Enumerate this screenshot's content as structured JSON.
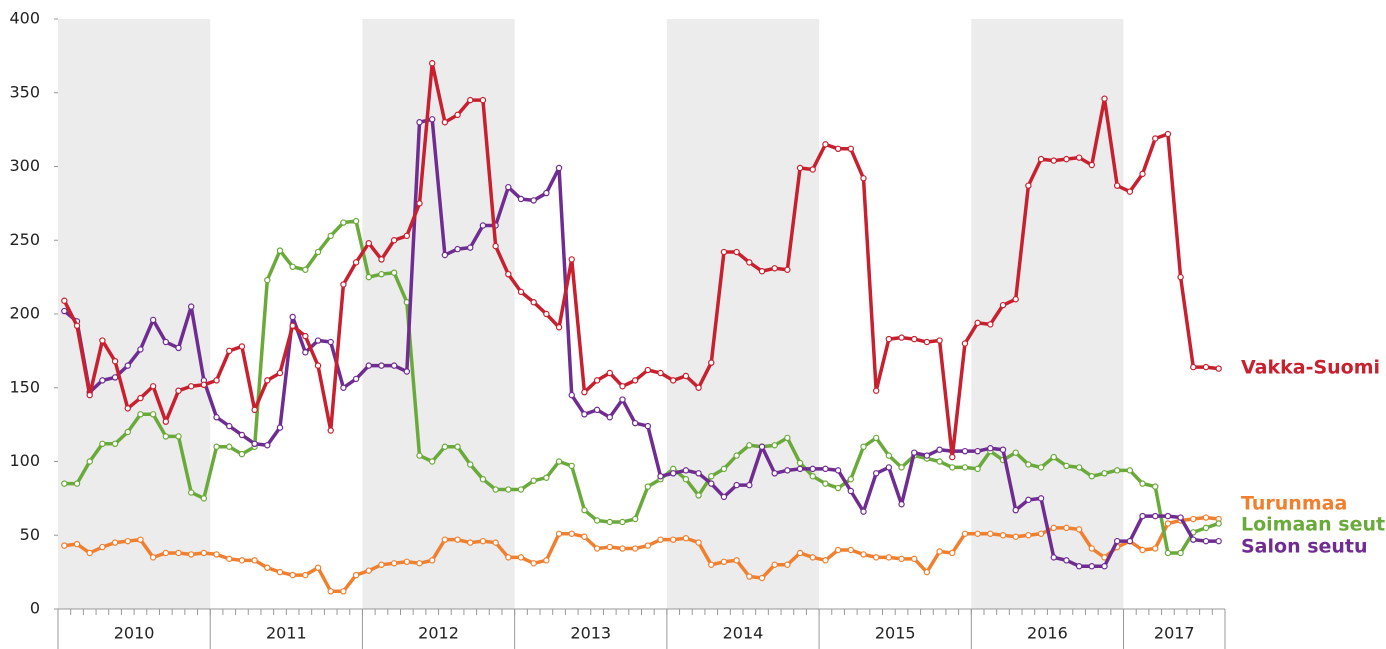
{
  "chart_data": {
    "type": "line",
    "periods": [
      {
        "label": "2010",
        "length": 12
      },
      {
        "label": "2011",
        "length": 12
      },
      {
        "label": "2012",
        "length": 12
      },
      {
        "label": "2013",
        "length": 12
      },
      {
        "label": "2014",
        "length": 12
      },
      {
        "label": "2015",
        "length": 12
      },
      {
        "label": "2016",
        "length": 12
      },
      {
        "label": "2017",
        "length": 8
      }
    ],
    "ylim": [
      0,
      400
    ],
    "yticks": [
      0,
      50,
      100,
      150,
      200,
      250,
      300,
      350,
      400
    ],
    "band_color": "#ececec",
    "series": [
      {
        "name": "Turunmaa",
        "color": "#f08030",
        "values": [
          43,
          44,
          38,
          42,
          45,
          46,
          47,
          35,
          38,
          38,
          37,
          38,
          37,
          34,
          33,
          33,
          28,
          25,
          23,
          23,
          28,
          12,
          12,
          23,
          26,
          30,
          31,
          32,
          31,
          33,
          47,
          47,
          45,
          46,
          45,
          35,
          35,
          31,
          33,
          51,
          51,
          49,
          41,
          42,
          41,
          41,
          43,
          47,
          47,
          48,
          45,
          30,
          32,
          33,
          22,
          21,
          30,
          30,
          38,
          35,
          33,
          40,
          40,
          37,
          35,
          35,
          34,
          34,
          25,
          39,
          38,
          51,
          51,
          51,
          50,
          49,
          50,
          51,
          55,
          55,
          54,
          41,
          35,
          42,
          46,
          40,
          41,
          58,
          60,
          61,
          62,
          61
        ]
      },
      {
        "name": "Loimaan seutu",
        "color": "#6aaa3a",
        "values": [
          85,
          85,
          100,
          112,
          112,
          120,
          132,
          132,
          117,
          117,
          79,
          75,
          110,
          110,
          105,
          110,
          223,
          243,
          232,
          230,
          242,
          253,
          262,
          263,
          225,
          227,
          228,
          208,
          104,
          100,
          110,
          110,
          98,
          88,
          81,
          81,
          81,
          87,
          89,
          100,
          97,
          67,
          60,
          59,
          59,
          61,
          83,
          88,
          95,
          88,
          77,
          90,
          95,
          104,
          111,
          110,
          111,
          116,
          99,
          90,
          85,
          82,
          88,
          110,
          116,
          104,
          96,
          104,
          102,
          100,
          96,
          96,
          95,
          107,
          101,
          106,
          98,
          96,
          103,
          97,
          96,
          90,
          92,
          94,
          94,
          85,
          83,
          38,
          38,
          52,
          55,
          58
        ]
      },
      {
        "name": "Salon seutu",
        "color": "#6f2c91",
        "values": [
          202,
          195,
          147,
          155,
          157,
          165,
          176,
          196,
          181,
          177,
          205,
          155,
          130,
          124,
          118,
          112,
          111,
          123,
          198,
          174,
          182,
          181,
          150,
          156,
          165,
          165,
          165,
          161,
          330,
          332,
          240,
          244,
          245,
          260,
          260,
          286,
          278,
          277,
          282,
          299,
          145,
          132,
          135,
          130,
          142,
          126,
          124,
          90,
          92,
          94,
          92,
          85,
          76,
          84,
          84,
          110,
          92,
          94,
          95,
          95,
          95,
          94,
          80,
          66,
          92,
          96,
          71,
          106,
          104,
          108,
          107,
          107,
          107,
          109,
          108,
          67,
          74,
          75,
          35,
          33,
          29,
          29,
          29,
          46,
          46,
          63,
          63,
          63,
          62,
          47,
          46,
          46
        ]
      },
      {
        "name": "Vakka-Suomi",
        "color": "#c8202f",
        "values": [
          209,
          192,
          145,
          182,
          168,
          136,
          143,
          151,
          127,
          148,
          151,
          152,
          155,
          175,
          178,
          135,
          155,
          160,
          192,
          185,
          165,
          121,
          220,
          235,
          248,
          237,
          250,
          253,
          275,
          370,
          330,
          335,
          345,
          345,
          246,
          227,
          215,
          208,
          200,
          191,
          237,
          147,
          155,
          160,
          151,
          155,
          162,
          160,
          155,
          158,
          150,
          167,
          242,
          242,
          235,
          229,
          231,
          230,
          299,
          298,
          315,
          312,
          312,
          292,
          148,
          183,
          184,
          183,
          181,
          182,
          103,
          180,
          194,
          193,
          206,
          210,
          287,
          305,
          304,
          305,
          306,
          301,
          346,
          287,
          283,
          295,
          319,
          322,
          225,
          164,
          164,
          163
        ]
      }
    ]
  }
}
